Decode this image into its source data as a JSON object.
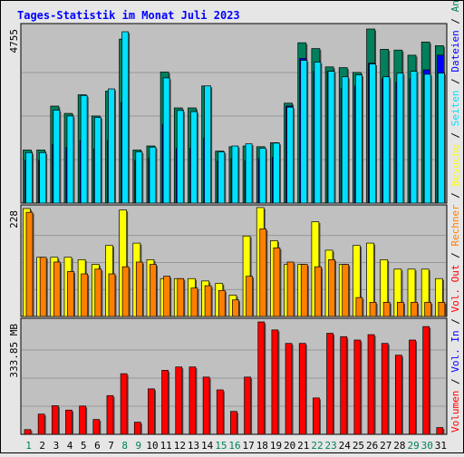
{
  "title": "Tages-Statistik im Monat Juli 2023",
  "colors": {
    "title": "#0000ff",
    "plot_bg": "#c0c0c0",
    "hits": "#00805c",
    "files": "#0000ff",
    "pages": "#00e0ff",
    "visits": "#ffff00",
    "sites": "#ff8000",
    "kbytes": "#ff0000",
    "day_weekday": "#000000",
    "day_weekend": "#00805c"
  },
  "chart_data": [
    {
      "type": "bar",
      "panel": "requests",
      "ymax_label": "4755",
      "ylim": [
        0,
        4755
      ],
      "x": [
        1,
        2,
        3,
        4,
        5,
        6,
        7,
        8,
        9,
        10,
        11,
        12,
        13,
        14,
        15,
        16,
        17,
        18,
        19,
        20,
        21,
        22,
        23,
        24,
        25,
        26,
        27,
        28,
        29,
        30,
        31
      ],
      "series": [
        {
          "name": "Anfragen",
          "values": [
            1450,
            1450,
            2650,
            2450,
            2960,
            2380,
            3060,
            4480,
            1450,
            1560,
            3580,
            2600,
            2600,
            3200,
            1420,
            1540,
            1560,
            1540,
            1650,
            2730,
            4380,
            4220,
            3720,
            3700,
            3570,
            4755,
            4200,
            4180,
            4040,
            4400,
            4300
          ]
        },
        {
          "name": "Dateien",
          "values": [
            1170,
            1170,
            1600,
            1520,
            1720,
            1480,
            1720,
            2750,
            1170,
            1230,
            2150,
            1500,
            1500,
            1780,
            1150,
            1220,
            1160,
            1220,
            1250,
            2650,
            3950,
            3600,
            3600,
            3140,
            3200,
            3820,
            3400,
            3300,
            3400,
            3640,
            4040
          ]
        },
        {
          "name": "Seiten",
          "values": [
            1380,
            1380,
            2540,
            2380,
            2940,
            2340,
            3120,
            4680,
            1400,
            1530,
            3420,
            2530,
            2500,
            3200,
            1400,
            1560,
            1620,
            1500,
            1640,
            2620,
            3900,
            3850,
            3600,
            3450,
            3500,
            3800,
            3450,
            3550,
            3600,
            3520,
            3550
          ]
        }
      ]
    },
    {
      "type": "bar",
      "panel": "visits",
      "ymax_label": "228",
      "ylim": [
        0,
        228
      ],
      "x": [
        1,
        2,
        3,
        4,
        5,
        6,
        7,
        8,
        9,
        10,
        11,
        12,
        13,
        14,
        15,
        16,
        17,
        18,
        19,
        20,
        21,
        22,
        23,
        24,
        25,
        26,
        27,
        28,
        29,
        30,
        31
      ],
      "series": [
        {
          "name": "Besuche",
          "values": [
            228,
            125,
            125,
            125,
            120,
            110,
            150,
            225,
            155,
            120,
            80,
            80,
            80,
            75,
            70,
            45,
            170,
            230,
            160,
            110,
            110,
            200,
            140,
            110,
            150,
            155,
            120,
            100,
            100,
            100,
            80
          ]
        },
        {
          "name": "Rechner",
          "values": [
            220,
            125,
            115,
            95,
            90,
            100,
            90,
            105,
            115,
            110,
            85,
            80,
            60,
            65,
            55,
            35,
            85,
            185,
            145,
            115,
            110,
            105,
            120,
            110,
            40,
            30,
            30,
            30,
            30,
            30,
            30
          ]
        }
      ]
    },
    {
      "type": "bar",
      "panel": "volume",
      "ymax_label": "333.85 MB",
      "ylim": [
        0,
        333.85
      ],
      "x": [
        1,
        2,
        3,
        4,
        5,
        6,
        7,
        8,
        9,
        10,
        11,
        12,
        13,
        14,
        15,
        16,
        17,
        18,
        19,
        20,
        21,
        22,
        23,
        24,
        25,
        26,
        27,
        28,
        29,
        30,
        31
      ],
      "series": [
        {
          "name": "Volumen",
          "values": [
            14,
            60,
            85,
            72,
            84,
            44,
            115,
            180,
            36,
            135,
            190,
            200,
            200,
            170,
            132,
            68,
            170,
            333.85,
            310,
            270,
            270,
            108,
            300,
            290,
            280,
            296,
            270,
            235,
            280,
            320,
            20
          ]
        }
      ]
    }
  ],
  "legend": {
    "top": [
      "Anfragen",
      "/",
      "Dateien",
      "/",
      "Seiten"
    ],
    "middle": [
      "Besuche",
      "/",
      "Rechner",
      "/",
      "Vol. Out"
    ],
    "bottom": [
      "Vol. In",
      "/",
      "Volumen"
    ]
  }
}
